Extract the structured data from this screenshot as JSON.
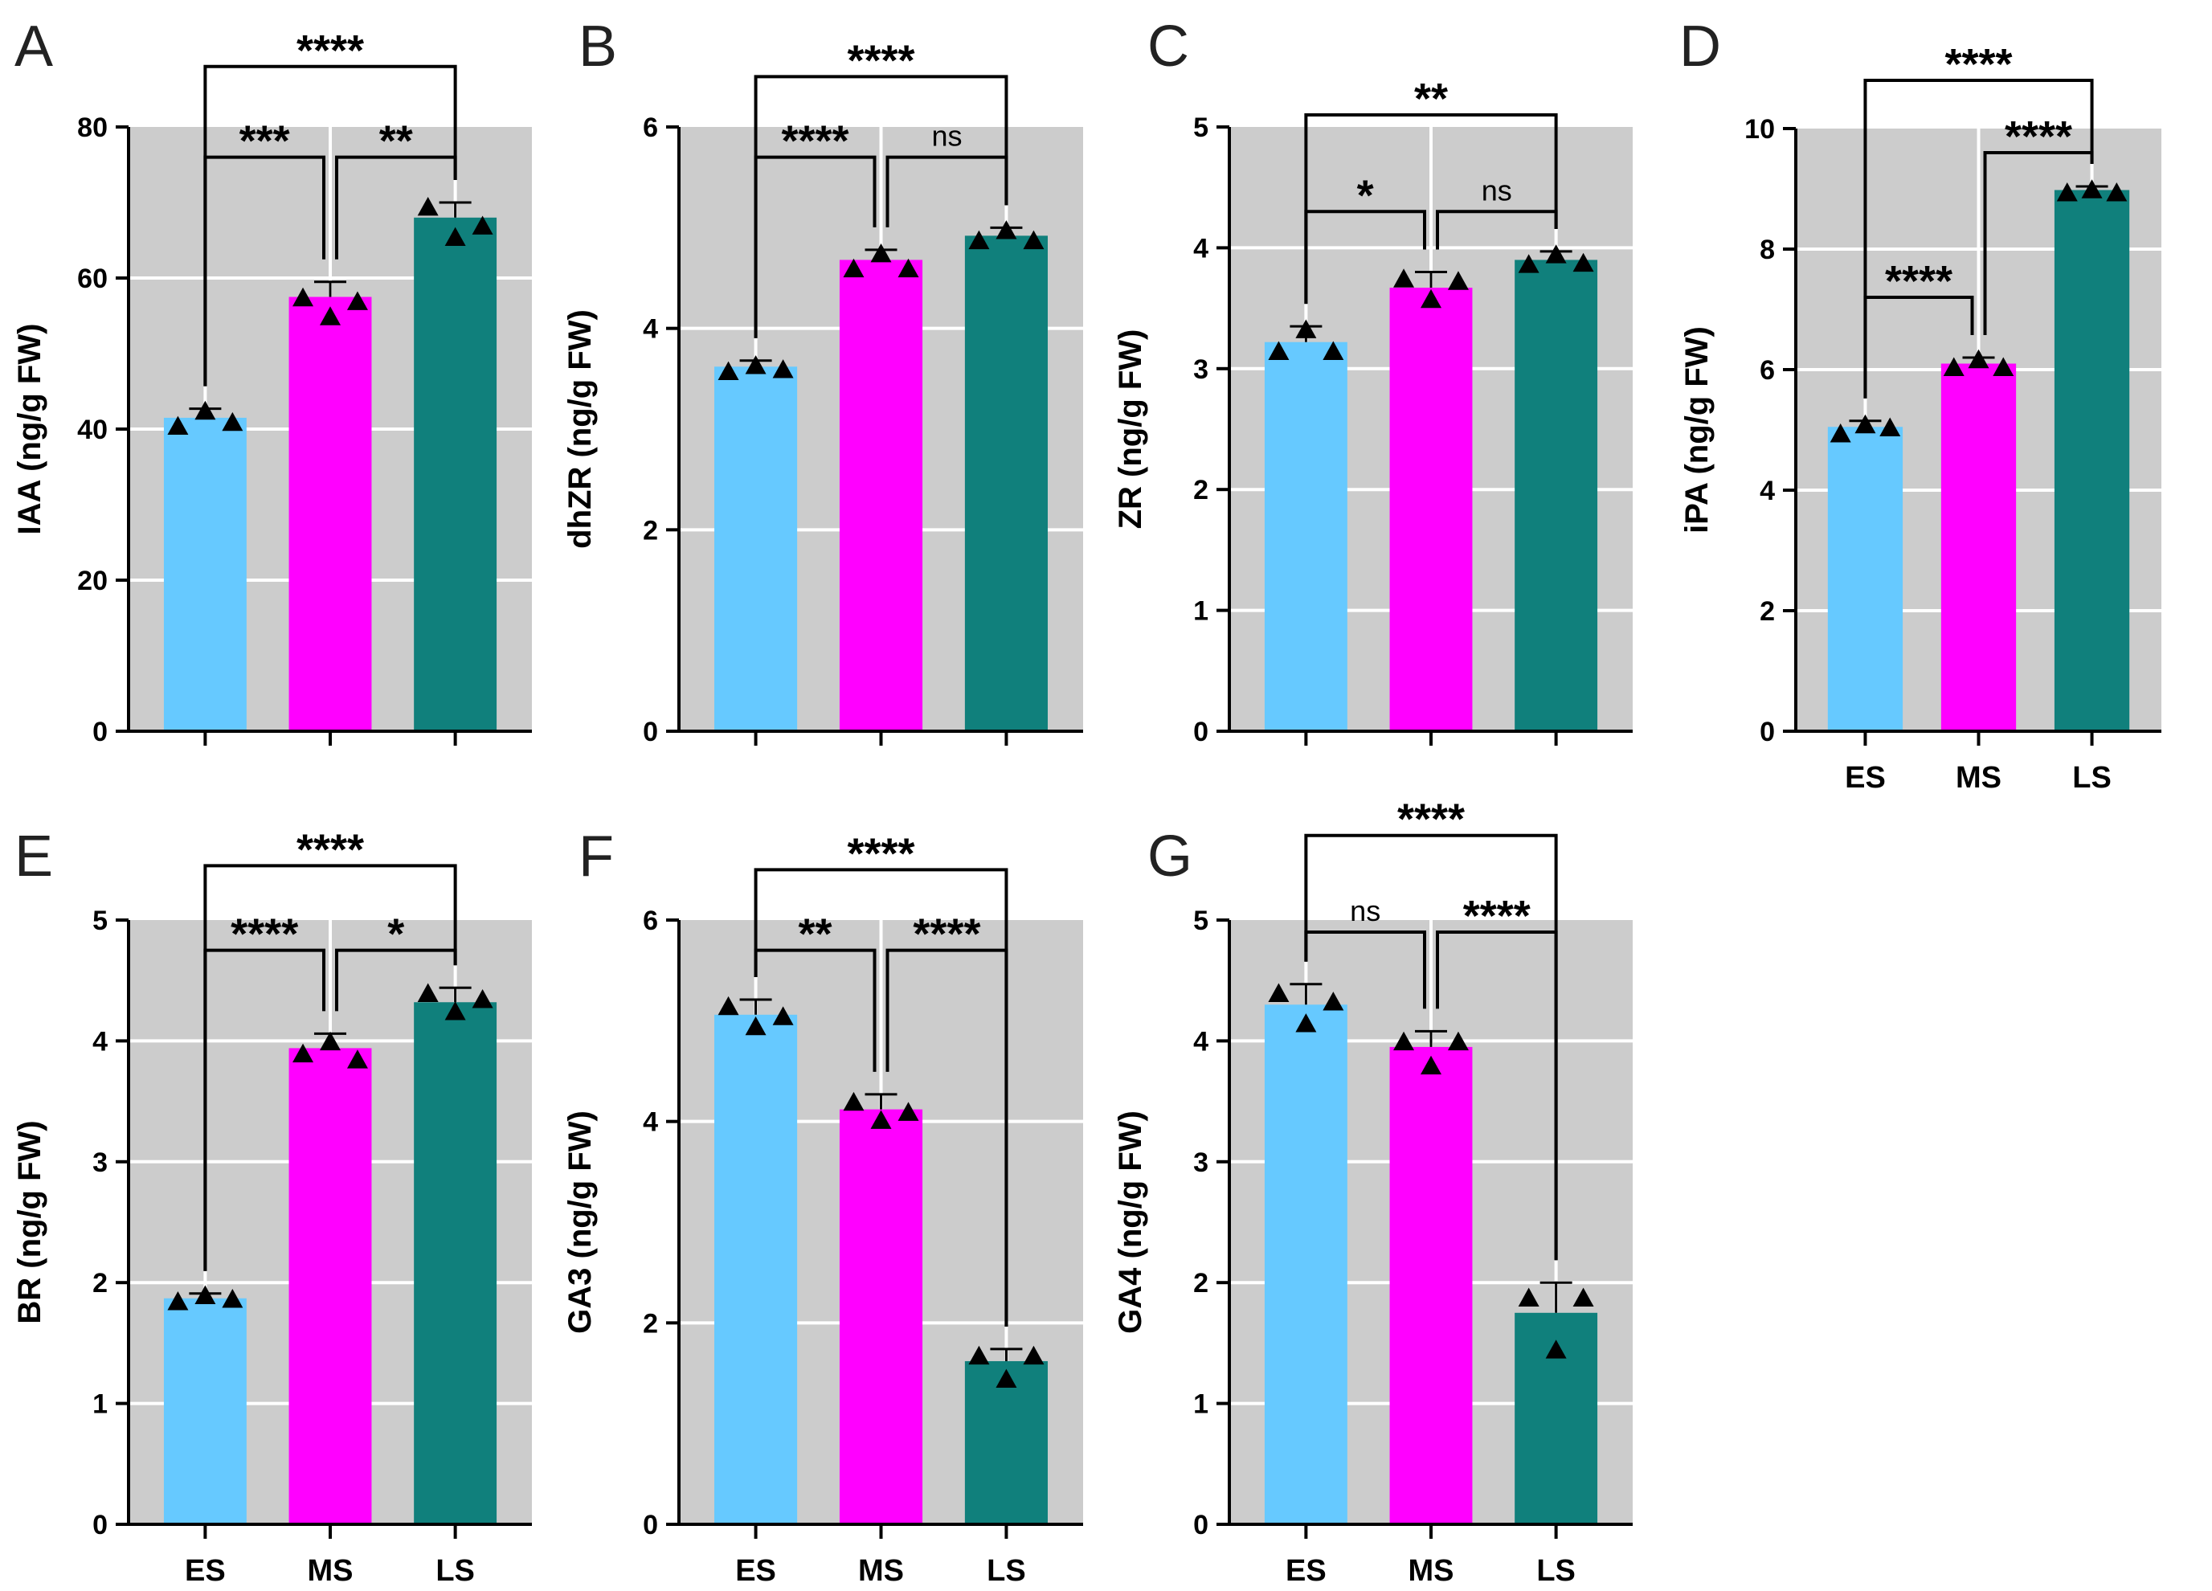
{
  "colors": {
    "ES": "#66C9FF",
    "MS": "#FF00FF",
    "LS": "#10807C",
    "plot_bg": "#CCCCCC",
    "grid": "#FFFFFF",
    "axis": "#000000"
  },
  "chart_data": [
    {
      "panel": "A",
      "type": "bar",
      "ylabel": "IAA (ng/g FW)",
      "ylim": [
        0,
        80
      ],
      "yticks": [
        0,
        20,
        40,
        60,
        80
      ],
      "categories": [
        "ES",
        "MS",
        "LS"
      ],
      "show_categories": false,
      "values": [
        41.5,
        57.5,
        68
      ],
      "errors": [
        1.2,
        2,
        2
      ],
      "points": [
        [
          40.5,
          42.5,
          41
        ],
        [
          57.5,
          55,
          57
        ],
        [
          69.5,
          65.5,
          67
        ]
      ],
      "comparisons": [
        {
          "a": 0,
          "b": 1,
          "label": "***",
          "y": 76
        },
        {
          "a": 1,
          "b": 2,
          "label": "**",
          "y": 76
        },
        {
          "a": 0,
          "b": 2,
          "label": "****",
          "y": 88
        }
      ]
    },
    {
      "panel": "B",
      "type": "bar",
      "ylabel": "dhZR (ng/g FW)",
      "ylim": [
        0,
        6
      ],
      "yticks": [
        0,
        2,
        4,
        6
      ],
      "categories": [
        "ES",
        "MS",
        "LS"
      ],
      "show_categories": false,
      "values": [
        3.62,
        4.68,
        4.92
      ],
      "errors": [
        0.06,
        0.1,
        0.08
      ],
      "points": [
        [
          3.58,
          3.64,
          3.6
        ],
        [
          4.6,
          4.75,
          4.6
        ],
        [
          4.88,
          4.98,
          4.88
        ]
      ],
      "comparisons": [
        {
          "a": 0,
          "b": 1,
          "label": "****",
          "y": 5.7
        },
        {
          "a": 1,
          "b": 2,
          "label": "ns",
          "y": 5.7
        },
        {
          "a": 0,
          "b": 2,
          "label": "****",
          "y": 6.5
        }
      ]
    },
    {
      "panel": "C",
      "type": "bar",
      "ylabel": "ZR (ng/g FW)",
      "ylim": [
        0,
        5
      ],
      "yticks": [
        0,
        1,
        2,
        3,
        4,
        5
      ],
      "categories": [
        "ES",
        "MS",
        "LS"
      ],
      "show_categories": false,
      "values": [
        3.22,
        3.67,
        3.9
      ],
      "errors": [
        0.13,
        0.13,
        0.07
      ],
      "points": [
        [
          3.15,
          3.33,
          3.15
        ],
        [
          3.75,
          3.58,
          3.73
        ],
        [
          3.87,
          3.95,
          3.88
        ]
      ],
      "comparisons": [
        {
          "a": 0,
          "b": 1,
          "label": "*",
          "y": 4.3
        },
        {
          "a": 1,
          "b": 2,
          "label": "ns",
          "y": 4.3
        },
        {
          "a": 0,
          "b": 2,
          "label": "**",
          "y": 5.1
        }
      ]
    },
    {
      "panel": "D",
      "type": "bar",
      "ylabel": "iPA (ng/g FW)",
      "ylim": [
        0,
        10
      ],
      "yticks": [
        0,
        2,
        4,
        6,
        8,
        10
      ],
      "categories": [
        "ES",
        "MS",
        "LS"
      ],
      "show_categories": true,
      "values": [
        5.05,
        6.1,
        8.98
      ],
      "errors": [
        0.1,
        0.1,
        0.06
      ],
      "points": [
        [
          4.95,
          5.1,
          5.05
        ],
        [
          6.05,
          6.18,
          6.05
        ],
        [
          8.95,
          9.0,
          8.95
        ]
      ],
      "comparisons": [
        {
          "a": 0,
          "b": 1,
          "label": "****",
          "y": 7.2
        },
        {
          "a": 1,
          "b": 2,
          "label": "****",
          "y": 9.6
        },
        {
          "a": 0,
          "b": 2,
          "label": "****",
          "y": 10.8
        }
      ]
    },
    {
      "panel": "E",
      "type": "bar",
      "ylabel": "BR (ng/g FW)",
      "ylim": [
        0,
        5
      ],
      "yticks": [
        0,
        1,
        2,
        3,
        4,
        5
      ],
      "categories": [
        "ES",
        "MS",
        "LS"
      ],
      "show_categories": true,
      "values": [
        1.87,
        3.94,
        4.32
      ],
      "errors": [
        0.04,
        0.12,
        0.12
      ],
      "points": [
        [
          1.85,
          1.9,
          1.87
        ],
        [
          3.9,
          4.0,
          3.85
        ],
        [
          4.4,
          4.25,
          4.35
        ]
      ],
      "comparisons": [
        {
          "a": 0,
          "b": 1,
          "label": "****",
          "y": 4.75
        },
        {
          "a": 1,
          "b": 2,
          "label": "*",
          "y": 4.75
        },
        {
          "a": 0,
          "b": 2,
          "label": "****",
          "y": 5.45
        }
      ]
    },
    {
      "panel": "F",
      "type": "bar",
      "ylabel": "GA3 (ng/g FW)",
      "ylim": [
        0,
        6
      ],
      "yticks": [
        0,
        2,
        4,
        6
      ],
      "categories": [
        "ES",
        "MS",
        "LS"
      ],
      "show_categories": true,
      "values": [
        5.06,
        4.12,
        1.62
      ],
      "errors": [
        0.15,
        0.15,
        0.12
      ],
      "points": [
        [
          5.15,
          4.95,
          5.05
        ],
        [
          4.2,
          4.02,
          4.1
        ],
        [
          1.68,
          1.45,
          1.68
        ]
      ],
      "comparisons": [
        {
          "a": 0,
          "b": 1,
          "label": "**",
          "y": 5.7
        },
        {
          "a": 1,
          "b": 2,
          "label": "****",
          "y": 5.7
        },
        {
          "a": 0,
          "b": 2,
          "label": "****",
          "y": 6.5
        }
      ]
    },
    {
      "panel": "G",
      "type": "bar",
      "ylabel": "GA4 (ng/g FW)",
      "ylim": [
        0,
        5
      ],
      "yticks": [
        0,
        1,
        2,
        3,
        4,
        5
      ],
      "categories": [
        "ES",
        "MS",
        "LS"
      ],
      "show_categories": true,
      "values": [
        4.3,
        3.95,
        1.75
      ],
      "errors": [
        0.17,
        0.13,
        0.25
      ],
      "points": [
        [
          4.4,
          4.15,
          4.33
        ],
        [
          4.0,
          3.8,
          4.0
        ],
        [
          1.88,
          1.45,
          1.88
        ]
      ],
      "comparisons": [
        {
          "a": 0,
          "b": 1,
          "label": "ns",
          "y": 4.9
        },
        {
          "a": 1,
          "b": 2,
          "label": "****",
          "y": 4.9
        },
        {
          "a": 0,
          "b": 2,
          "label": "****",
          "y": 5.7
        }
      ]
    }
  ]
}
